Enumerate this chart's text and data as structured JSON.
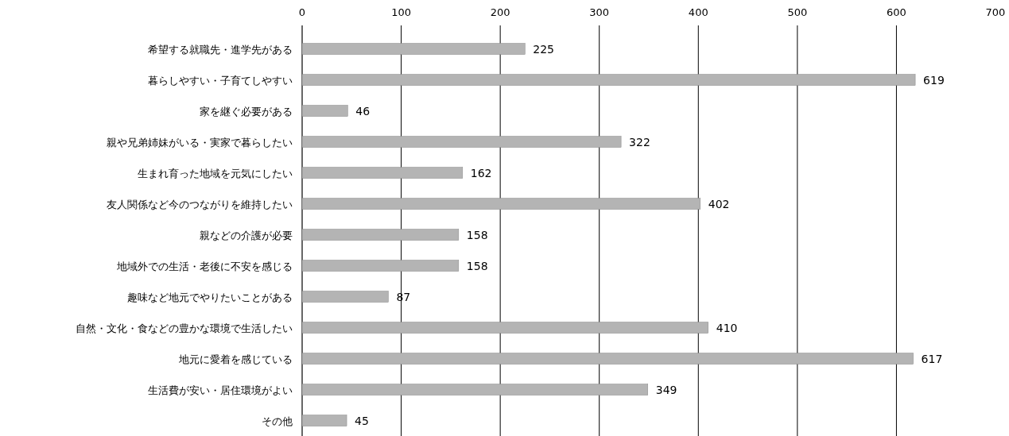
{
  "chart_data": {
    "type": "bar",
    "orientation": "horizontal",
    "categories": [
      "希望する就職先・進学先がある",
      "暮らしやすい・子育てしやすい",
      "家を継ぐ必要がある",
      "親や兄弟姉妹がいる・実家で暮らしたい",
      "生まれ育った地域を元気にしたい",
      "友人関係など今のつながりを維持したい",
      "親などの介護が必要",
      "地域外での生活・老後に不安を感じる",
      "趣味など地元でやりたいことがある",
      "自然・文化・食などの豊かな環境で生活したい",
      "地元に愛着を感じている",
      "生活費が安い・居住環境がよい",
      "その他"
    ],
    "values": [
      225,
      619,
      46,
      322,
      162,
      402,
      158,
      158,
      87,
      410,
      617,
      349,
      45
    ],
    "color": "#b4b4b4",
    "xlim": [
      0,
      700
    ],
    "xticks": [
      0,
      100,
      200,
      300,
      400,
      500,
      600,
      700
    ],
    "grid": "x",
    "data_labels": true
  }
}
